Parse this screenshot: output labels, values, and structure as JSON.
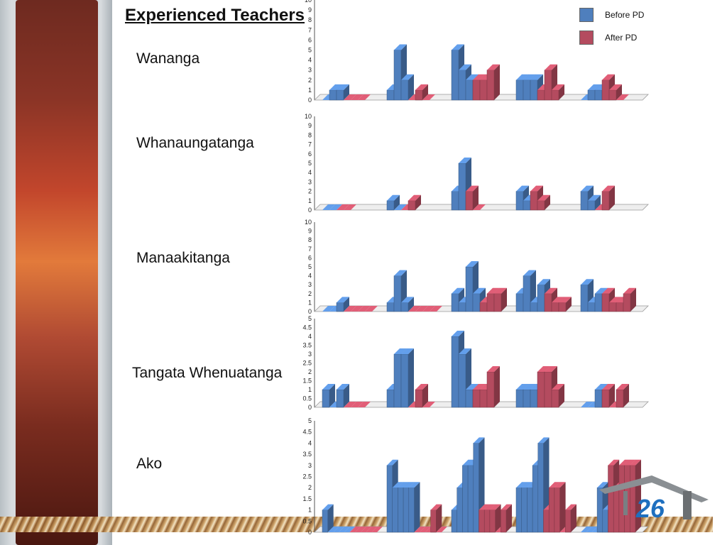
{
  "slide": {
    "title": "Experienced Teachers",
    "page_number": "26",
    "colors": {
      "before": "#4f7fbd",
      "after": "#b44b5f"
    }
  },
  "legend": {
    "before_label": "Before PD",
    "after_label": "After PD"
  },
  "chart_data": [
    {
      "type": "bar",
      "title": "Wananga",
      "series": [
        {
          "name": "Before PD"
        },
        {
          "name": "After PD"
        }
      ],
      "ylim": [
        0,
        10
      ],
      "yticks": [
        "0",
        "1",
        "2",
        "3",
        "4",
        "5",
        "6",
        "7",
        "8",
        "9",
        "10"
      ],
      "groups": [
        [
          {
            "s": 0,
            "v": 0
          },
          {
            "s": 0,
            "v": 1
          },
          {
            "s": 0,
            "v": 1
          },
          {
            "s": 1,
            "v": 0
          },
          {
            "s": 1,
            "v": 0
          },
          {
            "s": 1,
            "v": 0
          }
        ],
        [
          {
            "s": 0,
            "v": 1
          },
          {
            "s": 0,
            "v": 5
          },
          {
            "s": 0,
            "v": 2
          },
          {
            "s": 1,
            "v": 0
          },
          {
            "s": 1,
            "v": 1
          },
          {
            "s": 1,
            "v": 0
          }
        ],
        [
          {
            "s": 0,
            "v": 5
          },
          {
            "s": 0,
            "v": 3
          },
          {
            "s": 0,
            "v": 2
          },
          {
            "s": 1,
            "v": 2
          },
          {
            "s": 1,
            "v": 2
          },
          {
            "s": 1,
            "v": 3
          }
        ],
        [
          {
            "s": 0,
            "v": 2
          },
          {
            "s": 0,
            "v": 2
          },
          {
            "s": 0,
            "v": 2
          },
          {
            "s": 1,
            "v": 1
          },
          {
            "s": 1,
            "v": 3
          },
          {
            "s": 1,
            "v": 1
          }
        ],
        [
          {
            "s": 0,
            "v": 0
          },
          {
            "s": 0,
            "v": 1
          },
          {
            "s": 0,
            "v": 1
          },
          {
            "s": 1,
            "v": 2
          },
          {
            "s": 1,
            "v": 1
          },
          {
            "s": 1,
            "v": 0
          }
        ]
      ]
    },
    {
      "type": "bar",
      "title": "Whanaungatanga",
      "series": [
        {
          "name": "Before PD"
        },
        {
          "name": "After PD"
        }
      ],
      "ylim": [
        0,
        10
      ],
      "yticks": [
        "0",
        "1",
        "2",
        "3",
        "4",
        "5",
        "6",
        "7",
        "8",
        "9",
        "10"
      ],
      "groups": [
        [
          {
            "s": 0,
            "v": 0
          },
          {
            "s": 0,
            "v": 0
          },
          {
            "s": 1,
            "v": 0
          },
          {
            "s": 1,
            "v": 0
          }
        ],
        [
          {
            "s": 0,
            "v": 1
          },
          {
            "s": 0,
            "v": 0
          },
          {
            "s": 1,
            "v": 0
          },
          {
            "s": 1,
            "v": 1
          }
        ],
        [
          {
            "s": 0,
            "v": 2
          },
          {
            "s": 0,
            "v": 5
          },
          {
            "s": 1,
            "v": 2
          },
          {
            "s": 1,
            "v": 0
          }
        ],
        [
          {
            "s": 0,
            "v": 2
          },
          {
            "s": 0,
            "v": 1
          },
          {
            "s": 1,
            "v": 2
          },
          {
            "s": 1,
            "v": 1
          }
        ],
        [
          {
            "s": 0,
            "v": 2
          },
          {
            "s": 0,
            "v": 1
          },
          {
            "s": 1,
            "v": 0
          },
          {
            "s": 1,
            "v": 2
          }
        ]
      ]
    },
    {
      "type": "bar",
      "title": "Manaakitanga",
      "series": [
        {
          "name": "Before PD"
        },
        {
          "name": "After PD"
        }
      ],
      "ylim": [
        0,
        10
      ],
      "yticks": [
        "0",
        "1",
        "2",
        "3",
        "4",
        "5",
        "6",
        "7",
        "8",
        "9",
        "10"
      ],
      "groups": [
        [
          {
            "s": 0,
            "v": 0
          },
          {
            "s": 0,
            "v": 0
          },
          {
            "s": 0,
            "v": 1
          },
          {
            "s": 1,
            "v": 0
          },
          {
            "s": 1,
            "v": 0
          },
          {
            "s": 1,
            "v": 0
          },
          {
            "s": 1,
            "v": 0
          }
        ],
        [
          {
            "s": 0,
            "v": 1
          },
          {
            "s": 0,
            "v": 4
          },
          {
            "s": 0,
            "v": 1
          },
          {
            "s": 1,
            "v": 0
          },
          {
            "s": 1,
            "v": 0
          },
          {
            "s": 1,
            "v": 0
          },
          {
            "s": 1,
            "v": 0
          }
        ],
        [
          {
            "s": 0,
            "v": 2
          },
          {
            "s": 0,
            "v": 1
          },
          {
            "s": 0,
            "v": 5
          },
          {
            "s": 0,
            "v": 2
          },
          {
            "s": 1,
            "v": 1
          },
          {
            "s": 1,
            "v": 2
          },
          {
            "s": 1,
            "v": 2
          }
        ],
        [
          {
            "s": 0,
            "v": 2
          },
          {
            "s": 0,
            "v": 4
          },
          {
            "s": 0,
            "v": 1
          },
          {
            "s": 0,
            "v": 3
          },
          {
            "s": 1,
            "v": 2
          },
          {
            "s": 1,
            "v": 1
          },
          {
            "s": 1,
            "v": 1
          }
        ],
        [
          {
            "s": 0,
            "v": 3
          },
          {
            "s": 0,
            "v": 1
          },
          {
            "s": 0,
            "v": 2
          },
          {
            "s": 1,
            "v": 2
          },
          {
            "s": 1,
            "v": 1
          },
          {
            "s": 1,
            "v": 1
          },
          {
            "s": 1,
            "v": 2
          }
        ]
      ]
    },
    {
      "type": "bar",
      "title": "Tangata Whenuatanga",
      "series": [
        {
          "name": "Before PD"
        },
        {
          "name": "After PD"
        }
      ],
      "ylim": [
        0,
        5
      ],
      "yticks": [
        "0",
        "0.5",
        "1",
        "1.5",
        "2",
        "2.5",
        "3",
        "3.5",
        "4",
        "4.5",
        "5"
      ],
      "groups": [
        [
          {
            "s": 0,
            "v": 1
          },
          {
            "s": 0,
            "v": 0
          },
          {
            "s": 0,
            "v": 1
          },
          {
            "s": 1,
            "v": 0
          },
          {
            "s": 1,
            "v": 0
          },
          {
            "s": 1,
            "v": 0
          }
        ],
        [
          {
            "s": 0,
            "v": 1
          },
          {
            "s": 0,
            "v": 3
          },
          {
            "s": 0,
            "v": 3
          },
          {
            "s": 1,
            "v": 0
          },
          {
            "s": 1,
            "v": 1
          },
          {
            "s": 1,
            "v": 0
          }
        ],
        [
          {
            "s": 0,
            "v": 4
          },
          {
            "s": 0,
            "v": 3
          },
          {
            "s": 0,
            "v": 1
          },
          {
            "s": 1,
            "v": 1
          },
          {
            "s": 1,
            "v": 1
          },
          {
            "s": 1,
            "v": 2
          }
        ],
        [
          {
            "s": 0,
            "v": 1
          },
          {
            "s": 0,
            "v": 1
          },
          {
            "s": 0,
            "v": 1
          },
          {
            "s": 1,
            "v": 2
          },
          {
            "s": 1,
            "v": 2
          },
          {
            "s": 1,
            "v": 1
          }
        ],
        [
          {
            "s": 0,
            "v": 0
          },
          {
            "s": 0,
            "v": 0
          },
          {
            "s": 0,
            "v": 1
          },
          {
            "s": 1,
            "v": 1
          },
          {
            "s": 1,
            "v": 0
          },
          {
            "s": 1,
            "v": 1
          }
        ]
      ]
    },
    {
      "type": "bar",
      "title": "Ako",
      "series": [
        {
          "name": "Before PD"
        },
        {
          "name": "After PD"
        }
      ],
      "ylim": [
        0,
        5
      ],
      "yticks": [
        "0",
        "0.5",
        "1",
        "1.5",
        "2",
        "2.5",
        "3",
        "3.5",
        "4",
        "4.5",
        "5"
      ],
      "groups": [
        [
          {
            "s": 0,
            "v": 1
          },
          {
            "s": 0,
            "v": 0
          },
          {
            "s": 0,
            "v": 0
          },
          {
            "s": 0,
            "v": 0
          },
          {
            "s": 0,
            "v": 0
          },
          {
            "s": 1,
            "v": 0
          },
          {
            "s": 1,
            "v": 0
          },
          {
            "s": 1,
            "v": 0
          },
          {
            "s": 1,
            "v": 0
          },
          {
            "s": 1,
            "v": 0
          }
        ],
        [
          {
            "s": 0,
            "v": 3
          },
          {
            "s": 0,
            "v": 2
          },
          {
            "s": 0,
            "v": 2
          },
          {
            "s": 0,
            "v": 2
          },
          {
            "s": 0,
            "v": 2
          },
          {
            "s": 1,
            "v": 0
          },
          {
            "s": 1,
            "v": 0
          },
          {
            "s": 1,
            "v": 0
          },
          {
            "s": 1,
            "v": 1
          },
          {
            "s": 1,
            "v": 0
          }
        ],
        [
          {
            "s": 0,
            "v": 1
          },
          {
            "s": 0,
            "v": 2
          },
          {
            "s": 0,
            "v": 3
          },
          {
            "s": 0,
            "v": 3
          },
          {
            "s": 0,
            "v": 4
          },
          {
            "s": 1,
            "v": 1
          },
          {
            "s": 1,
            "v": 1
          },
          {
            "s": 1,
            "v": 1
          },
          {
            "s": 1,
            "v": 0
          },
          {
            "s": 1,
            "v": 1
          }
        ],
        [
          {
            "s": 0,
            "v": 2
          },
          {
            "s": 0,
            "v": 2
          },
          {
            "s": 0,
            "v": 2
          },
          {
            "s": 0,
            "v": 3
          },
          {
            "s": 0,
            "v": 4
          },
          {
            "s": 1,
            "v": 1
          },
          {
            "s": 1,
            "v": 2
          },
          {
            "s": 1,
            "v": 2
          },
          {
            "s": 1,
            "v": 0
          },
          {
            "s": 1,
            "v": 1
          }
        ],
        [
          {
            "s": 0,
            "v": 0
          },
          {
            "s": 0,
            "v": 0
          },
          {
            "s": 0,
            "v": 0
          },
          {
            "s": 0,
            "v": 2
          },
          {
            "s": 0,
            "v": 1
          },
          {
            "s": 1,
            "v": 3
          },
          {
            "s": 1,
            "v": 2
          },
          {
            "s": 1,
            "v": 3
          },
          {
            "s": 1,
            "v": 3
          },
          {
            "s": 1,
            "v": 3
          }
        ]
      ]
    }
  ]
}
